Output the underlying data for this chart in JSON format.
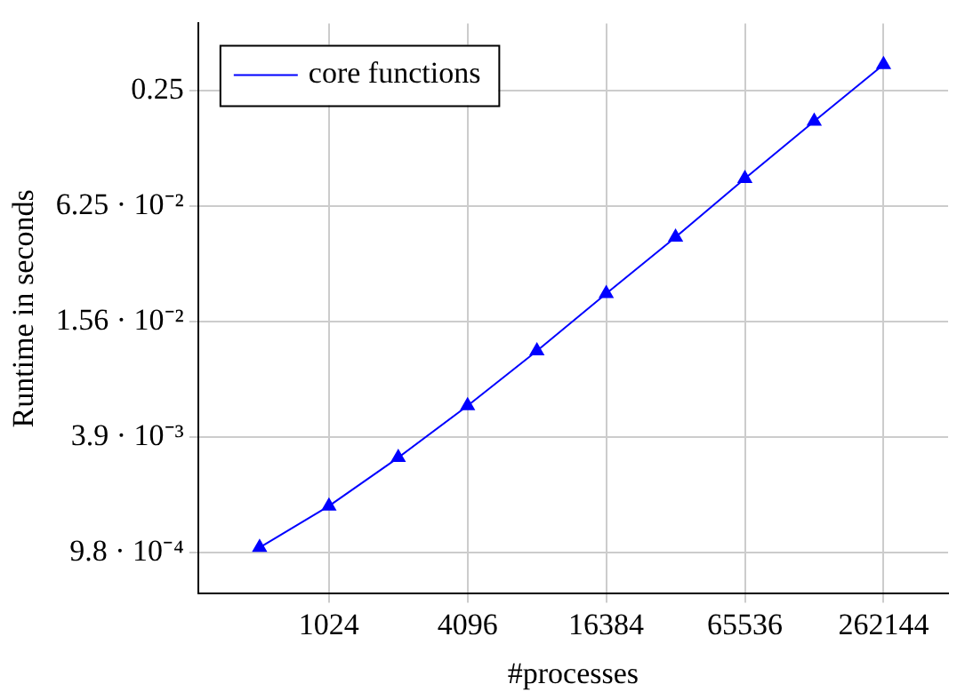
{
  "chart_data": {
    "type": "line",
    "xlabel": "#processes",
    "ylabel": "Runtime in seconds",
    "x": [
      512,
      1024,
      2048,
      4096,
      8192,
      16384,
      32768,
      65536,
      131072,
      262144
    ],
    "series": [
      {
        "name": "core functions",
        "color": "#0000ff",
        "values": [
          0.00104,
          0.00171,
          0.00306,
          0.0057,
          0.011,
          0.0219,
          0.0431,
          0.087,
          0.173,
          0.342
        ]
      }
    ],
    "log": "xy",
    "xlim": [
      277,
      500000
    ],
    "ylim": [
      0.000597,
      0.56
    ],
    "xticks": [
      1024,
      4096,
      16384,
      65536,
      262144
    ],
    "yticks": [
      {
        "value": 0.0009765625,
        "label": "9.8 · 10⁻⁴"
      },
      {
        "value": 0.00390625,
        "label": "3.9 · 10⁻³"
      },
      {
        "value": 0.015625,
        "label": "1.56 · 10⁻²"
      },
      {
        "value": 0.0625,
        "label": "6.25 · 10⁻²"
      },
      0.25
    ],
    "grid": true,
    "legend": "top left",
    "marker": "triangle",
    "line_style": "solid"
  }
}
